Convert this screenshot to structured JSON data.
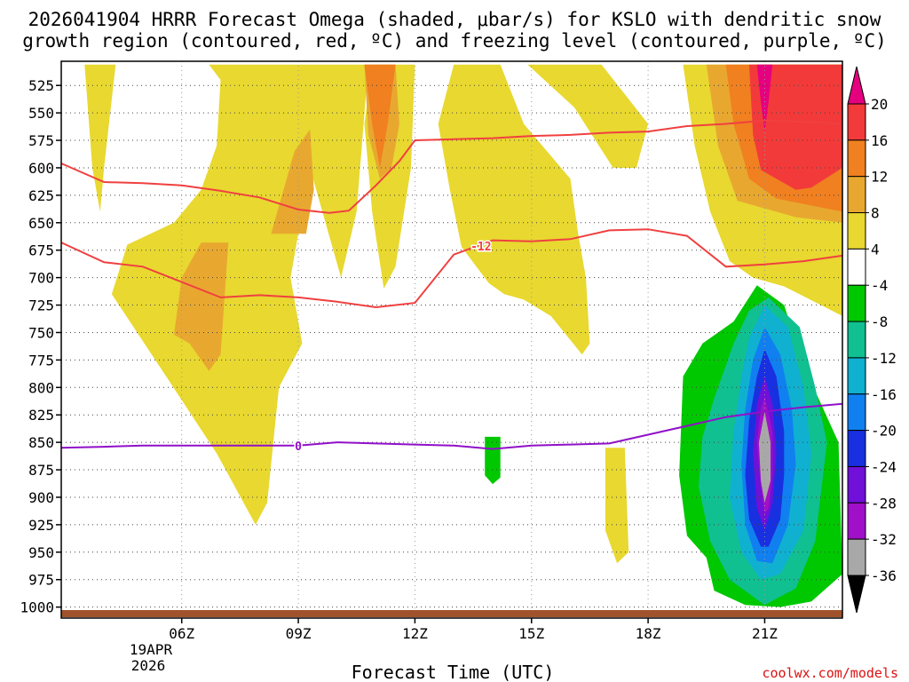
{
  "chart_data": {
    "type": "contour",
    "title_line1": "2026041904 HRRR Forecast Omega (shaded, μbar/s) for KSLO with dendritic snow",
    "title_line2": "growth region (contoured, red, ºC) and freezing level (contoured, purple, ºC)",
    "xlabel": "Forecast Time (UTC)",
    "credit": "coolwx.com/models",
    "xlim": [
      2.9,
      23.0
    ],
    "ylim": [
      1010,
      503
    ],
    "x_ticks": [
      {
        "value": 6,
        "label": "06Z"
      },
      {
        "value": 9,
        "label": "09Z"
      },
      {
        "value": 12,
        "label": "12Z"
      },
      {
        "value": 15,
        "label": "15Z"
      },
      {
        "value": 18,
        "label": "18Z"
      },
      {
        "value": 21,
        "label": "21Z"
      }
    ],
    "date_label_line1": "19APR",
    "date_label_line2": "2026",
    "y_ticks": [
      525,
      550,
      575,
      600,
      625,
      650,
      675,
      700,
      725,
      750,
      775,
      800,
      825,
      850,
      875,
      900,
      925,
      950,
      975,
      1000
    ],
    "colorbar": {
      "levels": [
        "20",
        "16",
        "12",
        "8",
        "4",
        "-4",
        "-8",
        "-12",
        "-16",
        "-20",
        "-24",
        "-28",
        "-32",
        "-36"
      ],
      "colors": [
        "#e4007f",
        "#f33a3a",
        "#f08020",
        "#e8a830",
        "#e8d830",
        "#ffffff",
        "#00c800",
        "#10c090",
        "#10b0d0",
        "#1080f0",
        "#1830e0",
        "#7010d8",
        "#a010c8",
        "#a8a8a8",
        "#000000"
      ]
    },
    "contour_labels": {
      "dgz": "-12",
      "freezing": "0"
    },
    "series": [
      {
        "name": "dgz_upper_-12C",
        "color": "#f04040",
        "x": [
          2.9,
          4.0,
          5.0,
          6.0,
          7.0,
          8.0,
          9.0,
          9.8,
          10.3,
          11.0,
          11.6,
          12.0,
          13.0,
          14.0,
          15.0,
          16.0,
          17.0,
          18.0,
          19.0,
          20.0,
          21.0,
          22.0,
          23.0
        ],
        "y": [
          596,
          613,
          614,
          616,
          621,
          627,
          638,
          641,
          639,
          616,
          594,
          575,
          574,
          573,
          571,
          570,
          568,
          567,
          562,
          560,
          557,
          558,
          560
        ]
      },
      {
        "name": "dgz_lower_-12C",
        "color": "#f04040",
        "x": [
          2.9,
          4.0,
          5.0,
          6.0,
          7.0,
          8.0,
          9.0,
          10.0,
          11.0,
          12.0,
          13.0,
          14.0,
          15.0,
          16.0,
          17.0,
          18.0,
          19.0,
          20.0,
          21.0,
          22.0,
          23.0
        ],
        "y": [
          668,
          686,
          690,
          704,
          718,
          716,
          718,
          722,
          727,
          723,
          679,
          666,
          667,
          665,
          657,
          656,
          662,
          690,
          688,
          685,
          680
        ]
      },
      {
        "name": "freezing_level_0C",
        "color": "#9010c8",
        "x": [
          2.9,
          4.0,
          5.0,
          6.0,
          7.0,
          8.0,
          9.0,
          10.0,
          11.0,
          12.0,
          13.0,
          14.0,
          15.0,
          16.0,
          17.0,
          18.0,
          19.0,
          20.0,
          21.0,
          22.0,
          23.0
        ],
        "y": [
          855,
          854,
          853,
          853,
          853,
          853,
          853,
          850,
          851,
          852,
          853,
          856,
          853,
          852,
          851,
          843,
          835,
          827,
          822,
          818,
          815
        ]
      }
    ],
    "shaded_regions": [
      {
        "level": "4",
        "color": "#e8d830",
        "points": [
          [
            3.5,
            506
          ],
          [
            4.3,
            506
          ],
          [
            4.0,
            600
          ],
          [
            3.9,
            640
          ],
          [
            3.7,
            600
          ]
        ]
      },
      {
        "level": "4",
        "color": "#e8d830",
        "points": [
          [
            6.7,
            506
          ],
          [
            10.8,
            506
          ],
          [
            10.5,
            640
          ],
          [
            10.1,
            700
          ],
          [
            9.3,
            600
          ],
          [
            8.8,
            700
          ],
          [
            9.1,
            760
          ],
          [
            8.5,
            800
          ],
          [
            8.2,
            905
          ],
          [
            7.9,
            925
          ],
          [
            6.9,
            860
          ],
          [
            5.6,
            790
          ],
          [
            4.2,
            715
          ],
          [
            4.6,
            670
          ],
          [
            5.8,
            650
          ],
          [
            6.5,
            620
          ],
          [
            6.9,
            580
          ],
          [
            7.0,
            520
          ]
        ]
      },
      {
        "level": "4",
        "color": "#e8d830",
        "points": [
          [
            10.9,
            506
          ],
          [
            12.0,
            506
          ],
          [
            11.9,
            600
          ],
          [
            11.5,
            690
          ],
          [
            11.2,
            710
          ],
          [
            10.9,
            640
          ],
          [
            10.7,
            560
          ]
        ]
      },
      {
        "level": "4",
        "color": "#e8d830",
        "points": [
          [
            13.0,
            506
          ],
          [
            14.2,
            506
          ],
          [
            14.8,
            560
          ],
          [
            16.0,
            610
          ],
          [
            16.2,
            660
          ],
          [
            16.4,
            700
          ],
          [
            16.5,
            760
          ],
          [
            16.3,
            770
          ],
          [
            15.5,
            735
          ],
          [
            14.8,
            720
          ],
          [
            14.3,
            715
          ],
          [
            13.9,
            705
          ],
          [
            13.2,
            672
          ],
          [
            12.9,
            620
          ],
          [
            12.6,
            560
          ]
        ]
      },
      {
        "level": "4",
        "color": "#e8d830",
        "points": [
          [
            14.9,
            506
          ],
          [
            16.8,
            506
          ],
          [
            18.0,
            560
          ],
          [
            17.7,
            600
          ],
          [
            17.1,
            600
          ],
          [
            16.1,
            545
          ]
        ]
      },
      {
        "level": "4",
        "color": "#e8d830",
        "points": [
          [
            18.9,
            506
          ],
          [
            23.0,
            506
          ],
          [
            23.0,
            735
          ],
          [
            21.5,
            708
          ],
          [
            20.7,
            700
          ],
          [
            20.1,
            685
          ],
          [
            19.6,
            640
          ],
          [
            19.2,
            580
          ]
        ]
      },
      {
        "level": "4",
        "color": "#e8d830",
        "points": [
          [
            16.9,
            855
          ],
          [
            17.4,
            855
          ],
          [
            17.5,
            950
          ],
          [
            17.2,
            960
          ],
          [
            16.9,
            930
          ]
        ]
      },
      {
        "level": "8",
        "color": "#e8a830",
        "points": [
          [
            8.3,
            660
          ],
          [
            8.9,
            585
          ],
          [
            9.3,
            565
          ],
          [
            9.4,
            620
          ],
          [
            9.2,
            660
          ]
        ]
      },
      {
        "level": "8",
        "color": "#e8a830",
        "points": [
          [
            6.5,
            668
          ],
          [
            7.2,
            668
          ],
          [
            7.0,
            770
          ],
          [
            6.7,
            785
          ],
          [
            6.2,
            760
          ],
          [
            5.8,
            752
          ],
          [
            6.0,
            700
          ]
        ]
      },
      {
        "level": "8",
        "color": "#e8a830",
        "points": [
          [
            10.7,
            506
          ],
          [
            11.5,
            506
          ],
          [
            11.6,
            560
          ],
          [
            11.4,
            600
          ],
          [
            11.1,
            610
          ],
          [
            10.8,
            570
          ]
        ]
      },
      {
        "level": "8",
        "color": "#e8a830",
        "points": [
          [
            19.5,
            506
          ],
          [
            23.0,
            506
          ],
          [
            23.0,
            650
          ],
          [
            21.8,
            645
          ],
          [
            20.3,
            630
          ],
          [
            19.8,
            580
          ],
          [
            19.6,
            530
          ]
        ]
      },
      {
        "level": "12",
        "color": "#f08020",
        "points": [
          [
            10.7,
            506
          ],
          [
            11.5,
            506
          ],
          [
            11.3,
            560
          ],
          [
            11.1,
            600
          ],
          [
            10.9,
            560
          ]
        ]
      },
      {
        "level": "12",
        "color": "#f08020",
        "points": [
          [
            20.0,
            506
          ],
          [
            23.0,
            506
          ],
          [
            23.0,
            640
          ],
          [
            21.3,
            628
          ],
          [
            20.6,
            610
          ],
          [
            20.2,
            560
          ]
        ]
      },
      {
        "level": "16",
        "color": "#f33a3a",
        "points": [
          [
            20.6,
            506
          ],
          [
            23.0,
            506
          ],
          [
            23.0,
            600
          ],
          [
            22.2,
            618
          ],
          [
            21.8,
            620
          ],
          [
            20.9,
            602
          ],
          [
            20.7,
            570
          ]
        ]
      },
      {
        "level": "20",
        "color": "#e4007f",
        "points": [
          [
            20.8,
            506
          ],
          [
            21.2,
            506
          ],
          [
            21.1,
            540
          ],
          [
            21.0,
            567
          ],
          [
            20.9,
            540
          ]
        ]
      },
      {
        "level": "-4",
        "color": "#00c800",
        "points": [
          [
            13.8,
            845
          ],
          [
            14.2,
            845
          ],
          [
            14.2,
            882
          ],
          [
            14.0,
            888
          ],
          [
            13.8,
            880
          ]
        ]
      },
      {
        "level": "-4",
        "color": "#00c800",
        "points": [
          [
            20.8,
            707
          ],
          [
            21.5,
            725
          ],
          [
            22.0,
            780
          ],
          [
            22.9,
            850
          ],
          [
            23.0,
            970
          ],
          [
            22.2,
            995
          ],
          [
            21.4,
            1000
          ],
          [
            20.5,
            998
          ],
          [
            19.7,
            985
          ],
          [
            19.5,
            955
          ],
          [
            19.0,
            935
          ],
          [
            18.8,
            880
          ],
          [
            18.9,
            790
          ],
          [
            19.4,
            760
          ],
          [
            20.2,
            740
          ]
        ]
      },
      {
        "level": "-8",
        "color": "#10c090",
        "points": [
          [
            21.1,
            718
          ],
          [
            21.9,
            745
          ],
          [
            22.3,
            800
          ],
          [
            22.6,
            850
          ],
          [
            22.3,
            940
          ],
          [
            21.8,
            983
          ],
          [
            21.0,
            998
          ],
          [
            20.1,
            975
          ],
          [
            19.6,
            940
          ],
          [
            19.3,
            890
          ],
          [
            19.4,
            845
          ],
          [
            19.7,
            810
          ],
          [
            20.2,
            760
          ],
          [
            20.6,
            730
          ]
        ]
      },
      {
        "level": "-12",
        "color": "#10b0d0",
        "points": [
          [
            21.0,
            725
          ],
          [
            21.6,
            745
          ],
          [
            22.0,
            800
          ],
          [
            22.2,
            860
          ],
          [
            22.0,
            930
          ],
          [
            21.4,
            970
          ],
          [
            20.9,
            975
          ],
          [
            20.4,
            950
          ],
          [
            20.1,
            900
          ],
          [
            20.2,
            840
          ],
          [
            20.4,
            790
          ],
          [
            20.6,
            755
          ]
        ]
      },
      {
        "level": "-16",
        "color": "#1080f0",
        "points": [
          [
            21.0,
            745
          ],
          [
            21.4,
            770
          ],
          [
            21.7,
            820
          ],
          [
            21.8,
            870
          ],
          [
            21.6,
            925
          ],
          [
            21.2,
            960
          ],
          [
            20.8,
            958
          ],
          [
            20.5,
            925
          ],
          [
            20.4,
            870
          ],
          [
            20.5,
            820
          ],
          [
            20.7,
            775
          ]
        ]
      },
      {
        "level": "-20",
        "color": "#1830e0",
        "points": [
          [
            21.0,
            765
          ],
          [
            21.3,
            790
          ],
          [
            21.5,
            840
          ],
          [
            21.5,
            880
          ],
          [
            21.4,
            920
          ],
          [
            21.1,
            945
          ],
          [
            20.9,
            945
          ],
          [
            20.6,
            920
          ],
          [
            20.5,
            880
          ],
          [
            20.6,
            830
          ],
          [
            20.8,
            790
          ]
        ]
      },
      {
        "level": "-24",
        "color": "#7010d8",
        "points": [
          [
            21.0,
            790
          ],
          [
            21.2,
            815
          ],
          [
            21.3,
            860
          ],
          [
            21.2,
            905
          ],
          [
            21.0,
            930
          ],
          [
            20.8,
            910
          ],
          [
            20.7,
            860
          ],
          [
            20.8,
            815
          ]
        ]
      },
      {
        "level": "-28",
        "color": "#a010c8",
        "points": [
          [
            21.0,
            808
          ],
          [
            21.2,
            840
          ],
          [
            21.2,
            880
          ],
          [
            21.1,
            910
          ],
          [
            21.0,
            915
          ],
          [
            20.9,
            890
          ],
          [
            20.8,
            850
          ],
          [
            20.9,
            820
          ]
        ]
      },
      {
        "level": "-32",
        "color": "#a8a8a8",
        "points": [
          [
            21.0,
            822
          ],
          [
            21.15,
            850
          ],
          [
            21.15,
            885
          ],
          [
            21.0,
            905
          ],
          [
            20.9,
            885
          ],
          [
            20.85,
            850
          ]
        ]
      }
    ]
  }
}
